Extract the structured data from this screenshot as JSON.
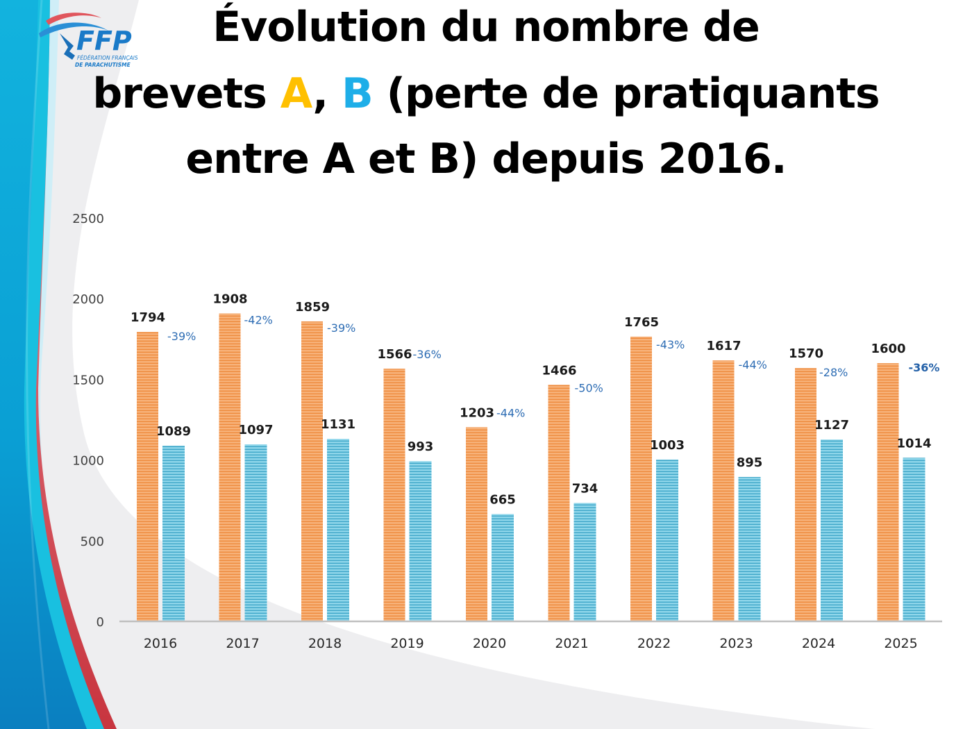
{
  "logo": {
    "acronym": "FFP",
    "line1": "FÉDÉRATION FRANÇAISE",
    "line2": "DE PARACHUTISME"
  },
  "title": {
    "line1": "Évolution du nombre de",
    "line2_pre": "brevets ",
    "line2_a": "A",
    "line2_sep": ", ",
    "line2_b": "B",
    "line2_post": " (perte de pratiquants",
    "line3": "entre A et B)  depuis 2016."
  },
  "colors": {
    "series_a": "#f4a160",
    "series_b": "#5bbcd9",
    "title_a": "#ffc000",
    "title_b": "#1eaee8",
    "percent_text": "#2e6db4"
  },
  "chart_data": {
    "type": "bar",
    "title": "Évolution du nombre de brevets A, B (perte de pratiquants entre A et B) depuis 2016.",
    "xlabel": "",
    "ylabel": "",
    "ylim": [
      0,
      2500
    ],
    "yticks": [
      0,
      500,
      1000,
      1500,
      2000,
      2500
    ],
    "grid": false,
    "legend": "none",
    "categories": [
      "2016",
      "2017",
      "2018",
      "2019",
      "2020",
      "2021",
      "2022",
      "2023",
      "2024",
      "2025"
    ],
    "series": [
      {
        "name": "A",
        "values": [
          1794,
          1908,
          1859,
          1566,
          1203,
          1466,
          1765,
          1617,
          1570,
          1600
        ]
      },
      {
        "name": "B",
        "values": [
          1089,
          1097,
          1131,
          993,
          665,
          734,
          1003,
          895,
          1127,
          1014
        ]
      }
    ],
    "annotations": [
      "-39%",
      "-42%",
      "-39%",
      "-36%",
      "-44%",
      "-50%",
      "-43%",
      "-44%",
      "-28%",
      "-36%"
    ]
  }
}
